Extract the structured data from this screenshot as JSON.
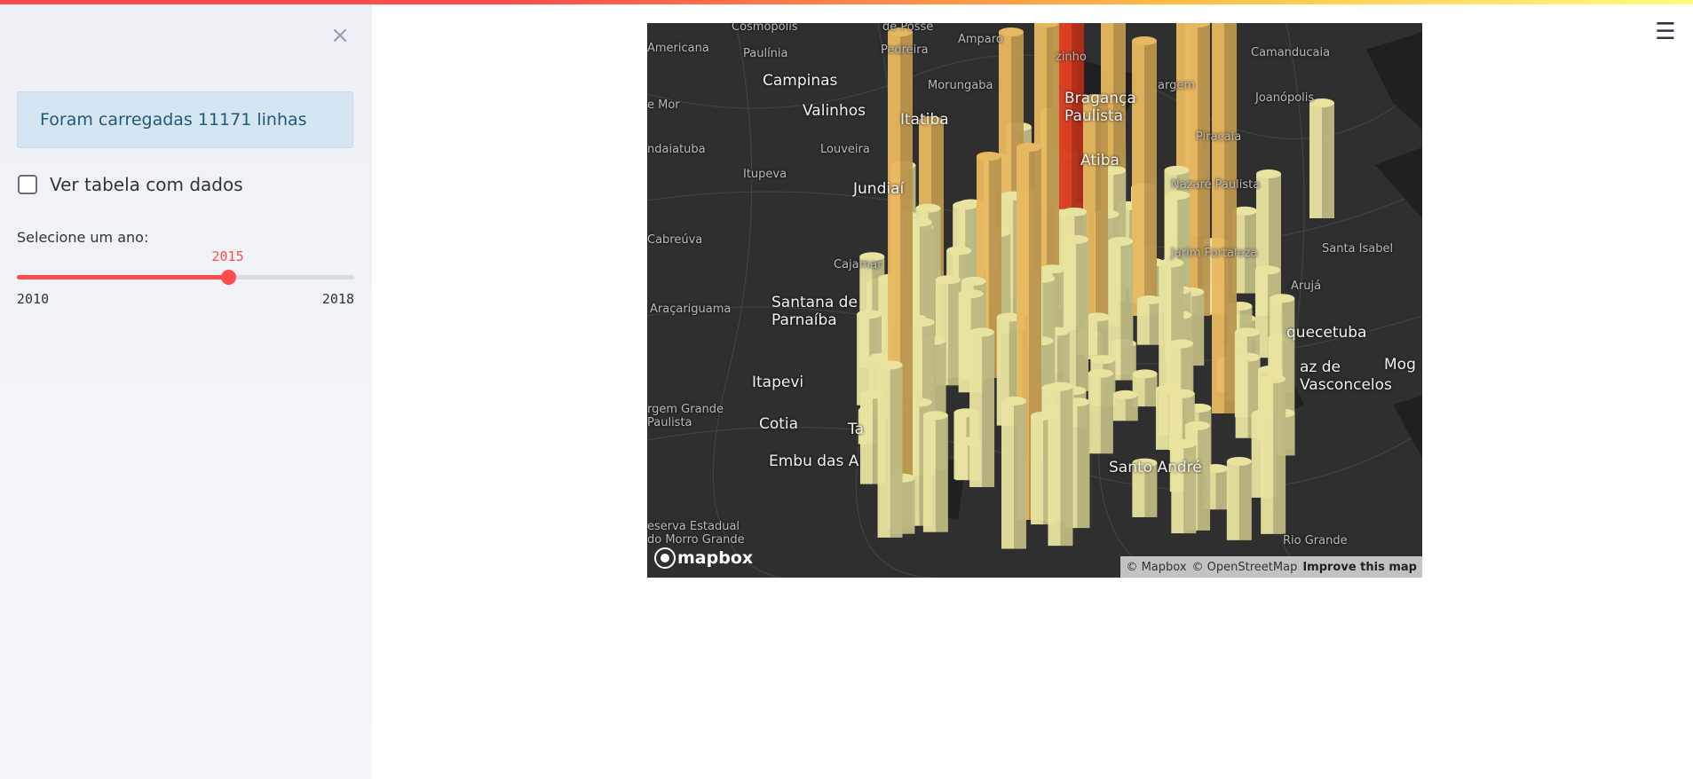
{
  "sidebar": {
    "close_icon": "×",
    "info_message": "Foram carregadas 11171 linhas",
    "checkbox_label": "Ver tabela com dados",
    "slider": {
      "label": "Selecione um ano:",
      "value": "2015",
      "min": "2010",
      "max": "2018",
      "value_fraction": 0.625
    }
  },
  "header": {
    "menu_icon": "☰"
  },
  "map": {
    "labels": [
      {
        "text": "Cosmópolis",
        "size": "small"
      },
      {
        "text": "de Posse",
        "size": "small"
      },
      {
        "text": "Amparo",
        "size": "small"
      },
      {
        "text": "Americana",
        "size": "small"
      },
      {
        "text": "Paulínia",
        "size": "small"
      },
      {
        "text": "Pedreira",
        "size": "small"
      },
      {
        "text": "zinho",
        "size": "small"
      },
      {
        "text": "Camanducaia",
        "size": "small"
      },
      {
        "text": "Campinas",
        "size": "big"
      },
      {
        "text": "Morungaba",
        "size": "small"
      },
      {
        "text": "Bragança Paulista",
        "size": "big"
      },
      {
        "text": "argem",
        "size": "small"
      },
      {
        "text": "Joanópolis",
        "size": "small"
      },
      {
        "text": "e Mor",
        "size": "small"
      },
      {
        "text": "Valinhos",
        "size": "big"
      },
      {
        "text": "Itatiba",
        "size": "big"
      },
      {
        "text": "Piracaia",
        "size": "small"
      },
      {
        "text": "ndaiatuba",
        "size": "small"
      },
      {
        "text": "Louveira",
        "size": "small"
      },
      {
        "text": "Atiba",
        "size": "big"
      },
      {
        "text": "Itupeva",
        "size": "small"
      },
      {
        "text": "Jundiaí",
        "size": "big"
      },
      {
        "text": "Nazaré Paulista",
        "size": "small"
      },
      {
        "text": "Cabreúva",
        "size": "small"
      },
      {
        "text": "Jarim Fortaleza",
        "size": "small"
      },
      {
        "text": "Santa Isabel",
        "size": "small"
      },
      {
        "text": "Cajamar",
        "size": "small"
      },
      {
        "text": "Arujá",
        "size": "small"
      },
      {
        "text": "Santana de Parnaíba",
        "size": "big"
      },
      {
        "text": "Araçariguama",
        "size": "small"
      },
      {
        "text": "quecetuba",
        "size": "big"
      },
      {
        "text": "Mog",
        "size": "big"
      },
      {
        "text": "az de Vasconcelos",
        "size": "big"
      },
      {
        "text": "Itapevi",
        "size": "big"
      },
      {
        "text": "rgem Grande Paulista",
        "size": "small"
      },
      {
        "text": "Cotia",
        "size": "big"
      },
      {
        "text": "Ta",
        "size": "big"
      },
      {
        "text": "Embu das A",
        "size": "big"
      },
      {
        "text": "Santo André",
        "size": "big"
      },
      {
        "text": "eserva Estadual do Morro Grande",
        "size": "small"
      },
      {
        "text": "Rio Grande",
        "size": "small"
      }
    ],
    "logo_text": "mapbox",
    "attribution_1": "© Mapbox",
    "attribution_2": "© OpenStreetMap",
    "attribution_3": "Improve this map"
  },
  "colors": {
    "accent": "#ff4b4b",
    "bar_light": "#e8e4a0",
    "bar_mid": "#e8b860",
    "bar_hot": "#d93a20"
  }
}
